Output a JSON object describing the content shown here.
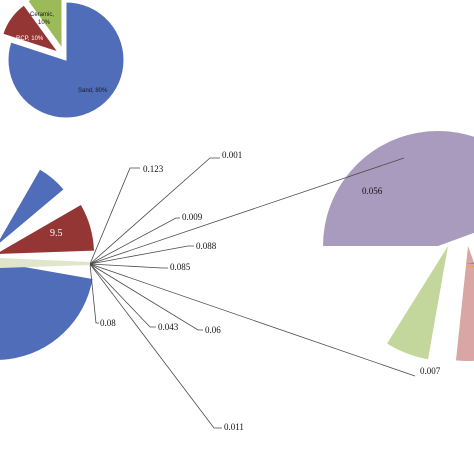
{
  "chart_data": [
    {
      "type": "pie",
      "title": "",
      "slices": [
        {
          "label": "Sand, 80%",
          "value": 80,
          "color": "#4f6db8"
        },
        {
          "label": "RCP, 10%",
          "value": 10,
          "color": "#943634"
        },
        {
          "label": "Ceramic, 10%",
          "value": 10,
          "color": "#9bbb59"
        }
      ],
      "exploded": [
        "RCP, 10%",
        "Ceramic, 10%"
      ]
    },
    {
      "type": "pie",
      "title": "",
      "slices": [
        {
          "label": "",
          "value": 80,
          "color": "#4f6db8"
        },
        {
          "label": "9.5",
          "value": 9.5,
          "color": "#943634"
        },
        {
          "label": "",
          "value": 10.5,
          "color": "#9bbb59"
        }
      ],
      "visible_part": "left portion, cropped at image edge"
    },
    {
      "type": "pie",
      "title": "",
      "callout_labels": [
        "0.123",
        "0.001",
        "0.009",
        "0.088",
        "0.085",
        "0.08",
        "0.043",
        "0.06",
        "0.011"
      ],
      "slice_labels": [
        "0.056",
        "0.007"
      ],
      "colors": {
        "large": "#a99bbd",
        "green": "#c3d69b",
        "pink": "#d9a5a5",
        "blue": "#4f9fc7"
      },
      "visible_part": "right portion, cropped at image edge"
    }
  ]
}
